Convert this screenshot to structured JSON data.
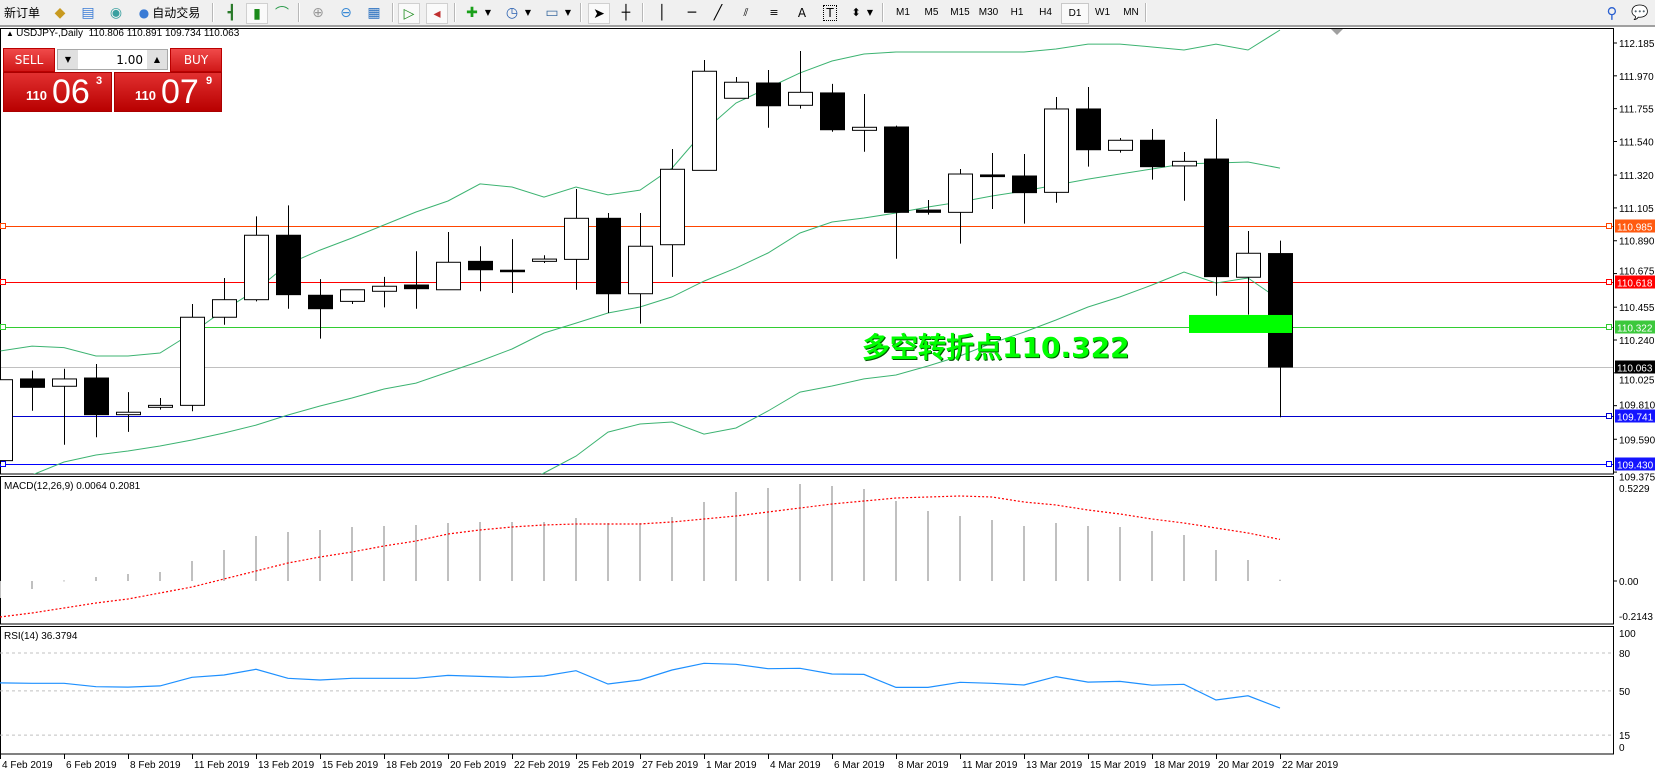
{
  "toolbar": {
    "new_order": "新订单",
    "auto_trading": "自动交易",
    "timeframes": [
      "M1",
      "M5",
      "M15",
      "M30",
      "H1",
      "H4",
      "D1",
      "W1",
      "MN"
    ],
    "active_timeframe": "D1",
    "icons": [
      "market-watch-icon",
      "navigator-icon",
      "signals-icon",
      "auto-trading-icon",
      "bar-chart-icon",
      "candlestick-icon",
      "line-chart-icon",
      "zoom-in-icon",
      "zoom-out-icon",
      "tile-windows-icon",
      "auto-scroll-icon",
      "chart-shift-icon",
      "new-chart-icon",
      "periods-icon",
      "templates-icon",
      "cursor-icon",
      "crosshair-icon",
      "vertical-line-icon",
      "horizontal-line-icon",
      "trendline-icon",
      "equidistant-channel-icon",
      "fibonacci-icon",
      "text-icon",
      "text-label-icon",
      "arrows-icon",
      "search-icon",
      "chat-icon"
    ],
    "letters": {
      "text": "A",
      "label": "T"
    }
  },
  "header": {
    "symbol": "USDJPY-,Daily",
    "ohlc": "110.806 110.891 109.734 110.063"
  },
  "trade_panel": {
    "sell_label": "SELL",
    "buy_label": "BUY",
    "lot": "1.00",
    "sell_price": {
      "prefix": "110",
      "big": "06",
      "small": "3"
    },
    "buy_price": {
      "prefix": "110",
      "big": "07",
      "small": "9"
    }
  },
  "chart_data": {
    "type": "candlestick",
    "symbol": "USDJPY-",
    "timeframe": "Daily",
    "ylim": [
      109.375,
      112.185
    ],
    "ohlc": [
      [
        109.45,
        110.17,
        109.43,
        109.98
      ],
      [
        109.985,
        110.04,
        109.777,
        109.93
      ],
      [
        109.937,
        110.052,
        109.554,
        109.985
      ],
      [
        109.991,
        110.083,
        109.603,
        109.751
      ],
      [
        109.751,
        109.899,
        109.638,
        109.767
      ],
      [
        109.799,
        109.86,
        109.784,
        109.812
      ],
      [
        109.812,
        110.476,
        109.773,
        110.389
      ],
      [
        110.389,
        110.646,
        110.34,
        110.504
      ],
      [
        110.504,
        111.05,
        110.493,
        110.926
      ],
      [
        110.926,
        111.122,
        110.445,
        110.537
      ],
      [
        110.533,
        110.639,
        110.249,
        110.445
      ],
      [
        110.493,
        110.569,
        110.476,
        110.569
      ],
      [
        110.559,
        110.653,
        110.454,
        110.592
      ],
      [
        110.6,
        110.821,
        110.445,
        110.576
      ],
      [
        110.569,
        110.947,
        110.569,
        110.749
      ],
      [
        110.755,
        110.854,
        110.559,
        110.7
      ],
      [
        110.697,
        110.901,
        110.548,
        110.688
      ],
      [
        110.755,
        110.795,
        110.744,
        110.77
      ],
      [
        110.768,
        111.229,
        110.569,
        111.037
      ],
      [
        111.037,
        111.072,
        110.417,
        110.543
      ],
      [
        110.543,
        111.072,
        110.347,
        110.854
      ],
      [
        110.864,
        111.491,
        110.653,
        111.358
      ],
      [
        111.351,
        112.074,
        111.351,
        112.0
      ],
      [
        111.823,
        111.962,
        111.823,
        111.928
      ],
      [
        111.923,
        112.008,
        111.63,
        111.774
      ],
      [
        111.777,
        112.133,
        111.755,
        111.862
      ],
      [
        111.858,
        111.917,
        111.604,
        111.617
      ],
      [
        111.613,
        111.851,
        111.473,
        111.633
      ],
      [
        111.635,
        111.644,
        110.772,
        111.076
      ],
      [
        111.091,
        111.157,
        111.061,
        111.076
      ],
      [
        111.076,
        111.36,
        110.871,
        111.327
      ],
      [
        111.321,
        111.465,
        111.098,
        111.31
      ],
      [
        111.314,
        111.458,
        111.002,
        111.205
      ],
      [
        111.207,
        111.831,
        111.139,
        111.753
      ],
      [
        111.753,
        111.897,
        111.375,
        111.486
      ],
      [
        111.482,
        111.563,
        111.467,
        111.548
      ],
      [
        111.548,
        111.622,
        111.29,
        111.375
      ],
      [
        111.38,
        111.471,
        111.152,
        111.41
      ],
      [
        111.425,
        111.687,
        110.53,
        110.655
      ],
      [
        110.651,
        110.954,
        110.406,
        110.808
      ],
      [
        110.806,
        110.891,
        109.734,
        110.063
      ]
    ],
    "bollinger": {
      "upper": [
        110.168,
        110.2,
        110.19,
        110.135,
        110.135,
        110.155,
        110.286,
        110.436,
        110.567,
        110.738,
        110.829,
        110.908,
        110.993,
        111.078,
        111.15,
        111.262,
        111.242,
        111.176,
        111.242,
        111.19,
        111.222,
        111.366,
        111.609,
        111.792,
        111.89,
        111.989,
        112.067,
        112.113,
        112.126,
        112.126,
        112.126,
        112.126,
        112.126,
        112.146,
        112.178,
        112.178,
        112.159,
        112.139,
        112.178,
        112.139,
        112.27
      ],
      "middle": [
        109.258,
        109.356,
        109.441,
        109.487,
        109.513,
        109.546,
        109.585,
        109.631,
        109.683,
        109.749,
        109.808,
        109.86,
        109.919,
        109.958,
        110.03,
        110.102,
        110.181,
        110.286,
        110.351,
        110.417,
        110.456,
        110.522,
        110.626,
        110.711,
        110.81,
        110.941,
        111.013,
        111.039,
        111.072,
        111.111,
        111.144,
        111.183,
        111.216,
        111.255,
        111.294,
        111.327,
        111.36,
        111.393,
        111.399,
        111.406,
        111.366
      ],
      "lower": [
        null,
        null,
        null,
        null,
        null,
        null,
        null,
        null,
        null,
        null,
        null,
        null,
        null,
        null,
        null,
        null,
        109.26,
        109.369,
        109.48,
        109.637,
        109.69,
        109.703,
        109.624,
        109.664,
        109.775,
        109.899,
        109.939,
        109.985,
        110.011,
        110.07,
        110.135,
        110.22,
        110.292,
        110.371,
        110.456,
        110.522,
        110.6,
        110.685,
        110.613,
        110.646,
        110.502
      ]
    },
    "price_ticks": [
      "112.185",
      "111.970",
      "111.755",
      "111.540",
      "111.320",
      "111.105",
      "110.890",
      "110.675",
      "110.455",
      "110.240",
      "110.025",
      "109.810",
      "109.590",
      "109.375"
    ],
    "hlines": [
      {
        "price": 110.985,
        "label": "110.985",
        "color": "#ff4500",
        "tag": "#ff5a10"
      },
      {
        "price": 110.618,
        "label": "110.618",
        "color": "#ff0000",
        "tag": "#ff0000"
      },
      {
        "price": 110.322,
        "label": "110.322",
        "color": "#32cd32",
        "tag": "#3cc83c"
      },
      {
        "price": 110.063,
        "label": "110.063",
        "color": "#c0c0c0",
        "tag": "#000000"
      },
      {
        "price": 109.741,
        "label": "109.741",
        "color": "#0000cd",
        "tag": "#1414ff"
      },
      {
        "price": 109.43,
        "label": "109.430",
        "color": "#0000ff",
        "tag": "#1414ff"
      }
    ],
    "zone": {
      "low": 110.286,
      "high": 110.404,
      "color": "#00ff00"
    },
    "annotation": "多空转折点110.322",
    "date_labels": [
      "4 Feb 2019",
      "6 Feb 2019",
      "8 Feb 2019",
      "11 Feb 2019",
      "13 Feb 2019",
      "15 Feb 2019",
      "18 Feb 2019",
      "20 Feb 2019",
      "22 Feb 2019",
      "25 Feb 2019",
      "27 Feb 2019",
      "1 Mar 2019",
      "4 Mar 2019",
      "6 Mar 2019",
      "8 Mar 2019",
      "11 Mar 2019",
      "13 Mar 2019",
      "15 Mar 2019",
      "18 Mar 2019",
      "20 Mar 2019",
      "22 Mar 2019"
    ],
    "macd": {
      "label": "MACD(12,26,9) 0.0064 0.2081",
      "ylim": [
        -0.2143,
        0.5229
      ],
      "ticks": [
        "0.5229",
        "0.00",
        "-0.2143"
      ],
      "histogram": [
        -0.085,
        -0.04,
        0.003,
        0.02,
        0.035,
        0.045,
        0.1,
        0.155,
        0.225,
        0.245,
        0.255,
        0.27,
        0.275,
        0.28,
        0.29,
        0.295,
        0.295,
        0.295,
        0.315,
        0.29,
        0.29,
        0.32,
        0.395,
        0.445,
        0.465,
        0.485,
        0.475,
        0.46,
        0.4,
        0.35,
        0.325,
        0.305,
        0.275,
        0.29,
        0.275,
        0.27,
        0.25,
        0.23,
        0.155,
        0.105,
        0.0064
      ],
      "signal": [
        -0.18,
        -0.16,
        -0.135,
        -0.11,
        -0.09,
        -0.06,
        -0.03,
        0.01,
        0.05,
        0.09,
        0.12,
        0.145,
        0.175,
        0.2,
        0.235,
        0.255,
        0.27,
        0.28,
        0.285,
        0.285,
        0.285,
        0.295,
        0.31,
        0.325,
        0.345,
        0.365,
        0.385,
        0.4,
        0.415,
        0.42,
        0.425,
        0.42,
        0.395,
        0.38,
        0.355,
        0.335,
        0.31,
        0.29,
        0.265,
        0.24,
        0.2081
      ],
      "histogram_color": "#c0c0c0",
      "signal_color": "#ff0000"
    },
    "rsi": {
      "label": "RSI(14) 36.3794",
      "ylim": [
        0,
        100
      ],
      "ticks": [
        "100",
        "80",
        "50",
        "15",
        "0"
      ],
      "levels": [
        80,
        50,
        15
      ],
      "values": [
        56.3,
        56,
        56,
        53.3,
        53,
        54,
        60.8,
        62.6,
        67.1,
        60,
        58.6,
        60,
        60,
        60,
        62.3,
        61.5,
        60.8,
        61.8,
        66,
        55.5,
        58.6,
        66.6,
        71.9,
        71.1,
        67.6,
        67.9,
        63.4,
        63.1,
        52.8,
        52.8,
        56.8,
        56,
        54.7,
        61.3,
        57,
        57.5,
        54.5,
        55.2,
        42.8,
        46.1,
        36.3794
      ],
      "color": "#1e90ff"
    },
    "band_color": "#3cb371"
  }
}
